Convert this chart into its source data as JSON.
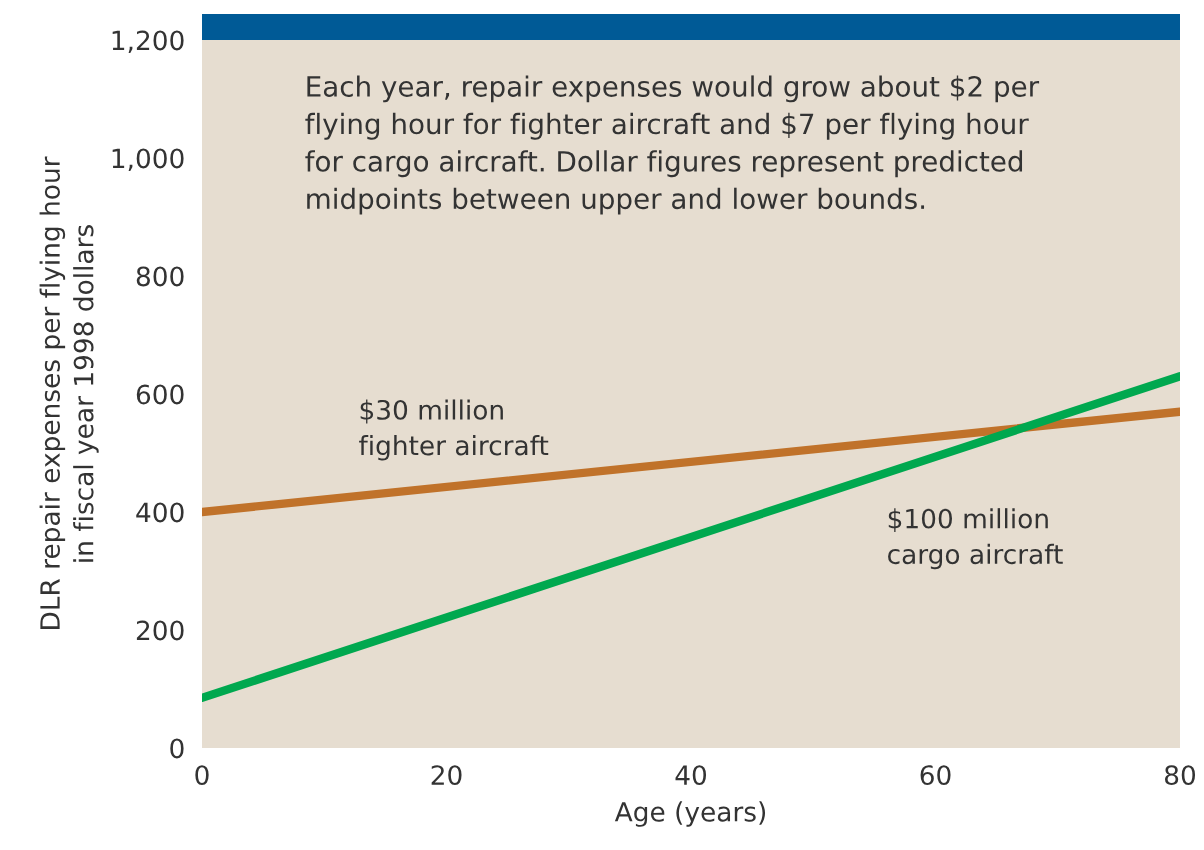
{
  "chart_data": {
    "type": "line",
    "xlabel": "Age (years)",
    "ylabel": "DLR repair expenses per flying hour\nin fiscal year 1998 dollars",
    "x": [
      0,
      80
    ],
    "series": [
      {
        "name": "$30 million\nfighter aircraft",
        "color": "#c0722a",
        "values": [
          400,
          570
        ]
      },
      {
        "name": "$100 million\ncargo aircraft",
        "color": "#00a84f",
        "values": [
          85,
          630
        ]
      }
    ],
    "xlim": [
      0,
      80
    ],
    "xticks": [
      0,
      20,
      40,
      60,
      80
    ],
    "ylim": [
      0,
      1200
    ],
    "yticks": [
      0,
      200,
      400,
      600,
      800,
      {
        "value": 1000,
        "label": "1,000"
      },
      {
        "value": 1200,
        "label": "1,200"
      }
    ],
    "annotations": [
      "Each year, repair expenses would grow about $2 per\nflying hour for fighter aircraft and $7 per flying hour\nfor cargo aircraft. Dollar figures represent predicted\nmidpoints between upper and lower bounds."
    ],
    "grid": false,
    "legend": false,
    "marker": "none",
    "line_style": "solid"
  }
}
